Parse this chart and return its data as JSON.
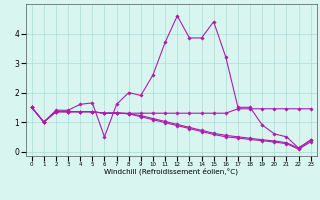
{
  "xlabel": "Windchill (Refroidissement éolien,°C)",
  "x": [
    0,
    1,
    2,
    3,
    4,
    5,
    6,
    7,
    8,
    9,
    10,
    11,
    12,
    13,
    14,
    15,
    16,
    17,
    18,
    19,
    20,
    21,
    22,
    23
  ],
  "line1": [
    1.5,
    1.0,
    1.4,
    1.4,
    1.6,
    1.65,
    0.5,
    1.6,
    2.0,
    1.9,
    2.6,
    3.7,
    4.6,
    3.85,
    3.85,
    4.4,
    3.2,
    1.5,
    1.5,
    0.9,
    0.6,
    0.5,
    0.12,
    0.4
  ],
  "line2": [
    1.5,
    1.0,
    1.35,
    1.35,
    1.35,
    1.35,
    1.3,
    1.3,
    1.3,
    1.3,
    1.3,
    1.3,
    1.3,
    1.3,
    1.3,
    1.3,
    1.3,
    1.45,
    1.45,
    1.45,
    1.45,
    1.45,
    1.45,
    1.45
  ],
  "line3": [
    1.5,
    1.0,
    1.35,
    1.35,
    1.35,
    1.35,
    1.3,
    1.3,
    1.28,
    1.22,
    1.12,
    1.02,
    0.92,
    0.82,
    0.72,
    0.62,
    0.55,
    0.5,
    0.45,
    0.4,
    0.36,
    0.3,
    0.12,
    0.38
  ],
  "line4": [
    1.5,
    1.0,
    1.35,
    1.35,
    1.35,
    1.35,
    1.3,
    1.32,
    1.28,
    1.18,
    1.08,
    0.98,
    0.88,
    0.78,
    0.68,
    0.58,
    0.5,
    0.46,
    0.41,
    0.37,
    0.32,
    0.27,
    0.08,
    0.33
  ],
  "color": "#aa1faa",
  "bg_color": "#d8f5f0",
  "grid_color": "#a8ddd8",
  "ylim": [
    -0.15,
    5.0
  ],
  "yticks": [
    0,
    1,
    2,
    3,
    4
  ],
  "xlim": [
    -0.5,
    23.5
  ]
}
